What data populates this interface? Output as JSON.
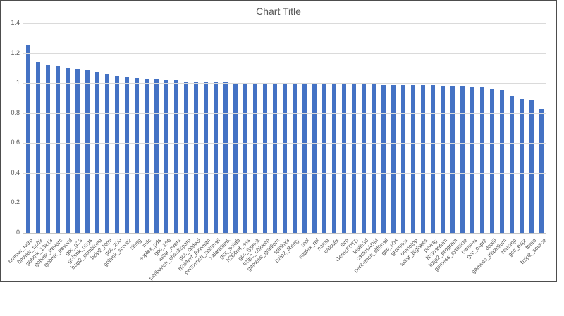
{
  "chart": {
    "title": "Chart Title"
  },
  "colors": {
    "bar": "#4472c4",
    "gridline": "#dadada",
    "axis_line": "#c3c3c3",
    "text": "#595959",
    "frame_border": "#4d4d4d"
  },
  "chart_data": {
    "type": "bar",
    "title": "Chart Title",
    "xlabel": "",
    "ylabel": "",
    "ylim": [
      0,
      1.4
    ],
    "grid": true,
    "legend": false,
    "y_ticks": [
      0,
      0.2,
      0.4,
      0.6,
      0.8,
      1,
      1.2,
      1.4
    ],
    "y_tick_labels": [
      "0",
      "0.2",
      "0.4",
      "0.6",
      "0.8",
      "1",
      "1.2",
      "1.4"
    ],
    "categories": [
      "hmmer_retro",
      "hmmer_nph3",
      "gobmk_13x13",
      "gobmk_trevorc",
      "gobmk_trevord",
      "gcc_g23",
      "gobmk_nngs",
      "bzip2_combined",
      "bzip2_html",
      "gcc_200",
      "gobmk_score2",
      "sjeng",
      "milc",
      "soplex_pds",
      "gcc_166",
      "astar_rivers",
      "perlbench_checkspam",
      "gcc_cpdecl",
      "h264ref_foreman",
      "perlbench_splitmail",
      "xalancbmk",
      "gcc_scilab",
      "h264ref_sss",
      "gcc_typeck",
      "bzip2_chicken",
      "gamess_gradient",
      "sphinx3",
      "bzip2_liberty",
      "mcf",
      "soplex_ref",
      "namd",
      "calculix",
      "lbm",
      "GemsFDTD",
      "leslie3d",
      "cactusADM",
      "perlbench_diffmail",
      "gcc_s04",
      "gromacs",
      "omnetpp",
      "astar_biglakes",
      "povray",
      "libquantum",
      "bzip2_program",
      "gamess_cytosine",
      "bwaves",
      "gcc_expr2",
      "dealII",
      "gamess_triazolium",
      "zeusmp",
      "gcc_expr",
      "tonto",
      "bzip2_source"
    ],
    "values": [
      1.253,
      1.143,
      1.122,
      1.113,
      1.106,
      1.096,
      1.089,
      1.072,
      1.061,
      1.047,
      1.042,
      1.034,
      1.031,
      1.029,
      1.021,
      1.018,
      1.012,
      1.009,
      1.007,
      1.005,
      1.004,
      1.002,
      1.001,
      1.0,
      0.999,
      0.998,
      0.997,
      0.996,
      0.995,
      0.994,
      0.993,
      0.992,
      0.991,
      0.99,
      0.99,
      0.989,
      0.988,
      0.987,
      0.986,
      0.986,
      0.985,
      0.985,
      0.984,
      0.984,
      0.983,
      0.977,
      0.971,
      0.959,
      0.952,
      0.912,
      0.898,
      0.89,
      0.827
    ]
  }
}
